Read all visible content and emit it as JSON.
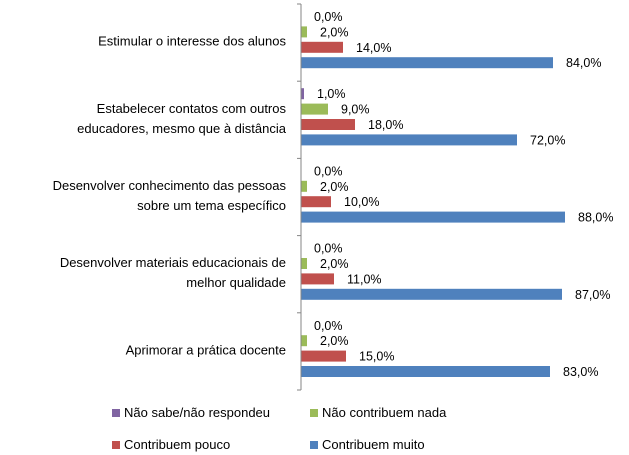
{
  "chart_data": {
    "type": "bar",
    "orientation": "horizontal",
    "categories": [
      [
        "Estimular o interesse dos alunos"
      ],
      [
        "Estabelecer contatos com outros",
        "educadores, mesmo que à distância"
      ],
      [
        "Desenvolver conhecimento das pessoas",
        "sobre um tema específico"
      ],
      [
        "Desenvolver materiais educacionais de",
        "melhor qualidade"
      ],
      [
        "Aprimorar a prática docente"
      ]
    ],
    "series": [
      {
        "name": "Não sabe/não respondeu",
        "color": "#8064A2",
        "values": [
          0.0,
          1.0,
          0.0,
          0.0,
          0.0
        ],
        "labels": [
          "0,0%",
          "1,0%",
          "0,0%",
          "0,0%",
          "0,0%"
        ]
      },
      {
        "name": "Não contribuem nada",
        "color": "#9BBB59",
        "values": [
          2.0,
          9.0,
          2.0,
          2.0,
          2.0
        ],
        "labels": [
          "2,0%",
          "9,0%",
          "2,0%",
          "2,0%",
          "2,0%"
        ]
      },
      {
        "name": "Contribuem pouco",
        "color": "#C0504D",
        "values": [
          14.0,
          18.0,
          10.0,
          11.0,
          15.0
        ],
        "labels": [
          "14,0%",
          "18,0%",
          "10,0%",
          "11,0%",
          "15,0%"
        ]
      },
      {
        "name": "Contribuem muito",
        "color": "#4F81BD",
        "values": [
          84.0,
          72.0,
          88.0,
          87.0,
          83.0
        ],
        "labels": [
          "84,0%",
          "72,0%",
          "88,0%",
          "87,0%",
          "83,0%"
        ]
      }
    ],
    "xlim": [
      0,
      100
    ],
    "grid": false,
    "legend_position": "bottom"
  }
}
